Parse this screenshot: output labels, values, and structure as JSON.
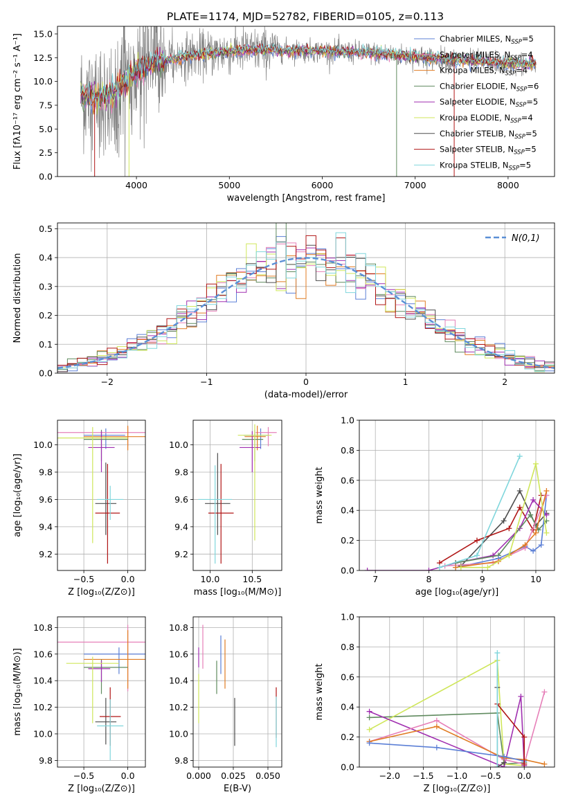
{
  "figure": {
    "title": "PLATE=1174, MJD=52782, FIBERID=0105, z=0.113",
    "models": [
      {
        "name": "Chabrier MILES",
        "nssp": "5",
        "color": "#5b7fd6"
      },
      {
        "name": "Salpeter MILES",
        "nssp": "4",
        "color": "#e67fb8"
      },
      {
        "name": "Kroupa MILES",
        "nssp": "4",
        "color": "#e07b22"
      },
      {
        "name": "Chabrier ELODIE",
        "nssp": "6",
        "color": "#5f8a5e"
      },
      {
        "name": "Salpeter ELODIE",
        "nssp": "5",
        "color": "#a02fb0"
      },
      {
        "name": "Kroupa ELODIE",
        "nssp": "4",
        "color": "#cfe65a"
      },
      {
        "name": "Chabrier STELIB",
        "nssp": "5",
        "color": "#4d4d4d"
      },
      {
        "name": "Salpeter STELIB",
        "nssp": "5",
        "color": "#b01414"
      },
      {
        "name": "Kroupa STELIB",
        "nssp": "5",
        "color": "#7fd6dc"
      }
    ],
    "legend_nssp_prefix": "N",
    "legend_nssp_sub": "SSP",
    "data_color": "#808080"
  },
  "chart_data": [
    {
      "id": "spectrum",
      "type": "line",
      "xlabel": "wavelength [Angstrom, rest frame]",
      "ylabel": "Flux [fλ10⁻¹⁷ erg cm⁻² s⁻¹ A⁻¹]",
      "xlim": [
        3150,
        8500
      ],
      "ylim": [
        0,
        15.8
      ],
      "xticks": [
        4000,
        5000,
        6000,
        7000,
        8000
      ],
      "yticks": [
        0.0,
        2.5,
        5.0,
        7.5,
        10.0,
        12.5,
        15.0
      ],
      "ytick_labels": [
        "0.0",
        "2.5",
        "5.0",
        "7.5",
        "10.0",
        "12.5",
        "15.0"
      ],
      "legend_position": "right",
      "continuum": {
        "x": [
          3400,
          3600,
          3700,
          3800,
          3900,
          4000,
          4200,
          4500,
          5000,
          5500,
          6000,
          6500,
          7000,
          7500,
          8000,
          8300
        ],
        "y": [
          8.6,
          8.2,
          8.6,
          9.2,
          10.0,
          11.0,
          12.0,
          12.6,
          13.2,
          13.3,
          13.2,
          13.0,
          12.6,
          12.2,
          11.9,
          11.8
        ]
      },
      "drops": [
        {
          "x": 3550,
          "model": 7
        },
        {
          "x": 3920,
          "model": 5
        },
        {
          "x": 6800,
          "model": 3
        },
        {
          "x": 7420,
          "model": 7
        }
      ]
    },
    {
      "id": "residuals",
      "type": "histogram",
      "xlabel": "(data-model)/error",
      "ylabel": "Normed distribution",
      "xlim": [
        -2.5,
        2.5
      ],
      "ylim": [
        0,
        0.52
      ],
      "xticks": [
        -2,
        -1,
        0,
        1,
        2
      ],
      "xtick_labels": [
        "−2",
        "−1",
        "0",
        "1",
        "2"
      ],
      "yticks": [
        0.0,
        0.1,
        0.2,
        0.3,
        0.4,
        0.5
      ],
      "ytick_labels": [
        "0.0",
        "0.1",
        "0.2",
        "0.3",
        "0.4",
        "0.5"
      ],
      "bin_width": 0.1,
      "grid": true,
      "legend_position": "top-right",
      "reference_curve": {
        "name": "N(0,1)",
        "color": "#5b8fd6"
      }
    },
    {
      "id": "age-vs-Z",
      "type": "errorbar",
      "xlabel": "Z [log₁₀(Z/Z⊙)]",
      "ylabel": "age  [log₁₀(age/yr)]",
      "xlim": [
        -0.8,
        0.2
      ],
      "ylim": [
        9.08,
        10.18
      ],
      "xticks": [
        -0.5,
        0.0
      ],
      "xtick_labels": [
        "−0.5",
        "0.0"
      ],
      "yticks": [
        9.2,
        9.4,
        9.6,
        9.8,
        10.0
      ],
      "ytick_labels": [
        "9.2",
        "9.4",
        "9.6",
        "9.8",
        "10.0"
      ],
      "grid": true,
      "points": [
        {
          "model": 0,
          "x": -0.25,
          "xerr": [
            0.25,
            0.22
          ],
          "y": 10.07,
          "yerr": [
            0.1,
            0.05
          ]
        },
        {
          "model": 1,
          "x": 0.0,
          "xerr": [
            0.8,
            0.2
          ],
          "y": 10.09,
          "yerr": [
            0.1,
            0.04
          ]
        },
        {
          "model": 2,
          "x": 0.0,
          "xerr": [
            0.5,
            0.2
          ],
          "y": 10.06,
          "yerr": [
            0.1,
            0.08
          ]
        },
        {
          "model": 3,
          "x": -0.3,
          "xerr": [
            0.2,
            0.3
          ],
          "y": 10.04,
          "yerr": [
            0.16,
            0.07
          ]
        },
        {
          "model": 4,
          "x": -0.3,
          "xerr": [
            0.15,
            0.15
          ],
          "y": 9.98,
          "yerr": [
            0.18,
            0.12
          ]
        },
        {
          "model": 5,
          "x": -0.4,
          "xerr": [
            0.4,
            0.4
          ],
          "y": 10.05,
          "yerr": [
            0.77,
            0.08
          ]
        },
        {
          "model": 6,
          "x": -0.25,
          "xerr": [
            0.12,
            0.12
          ],
          "y": 9.57,
          "yerr": [
            0.23,
            0.3
          ]
        },
        {
          "model": 7,
          "x": -0.23,
          "xerr": [
            0.14,
            0.14
          ],
          "y": 9.5,
          "yerr": [
            0.37,
            0.36
          ]
        },
        {
          "model": 8,
          "x": -0.2,
          "xerr": [
            0.15,
            0.15
          ],
          "y": 9.6,
          "yerr": [
            0.15,
            0.1
          ]
        }
      ]
    },
    {
      "id": "age-vs-mass",
      "type": "errorbar",
      "xlabel": "mass [log₁₀(M/M⊙)]",
      "ylabel": "",
      "xlim": [
        9.8,
        10.85
      ],
      "ylim": [
        9.08,
        10.18
      ],
      "xticks": [
        10.0,
        10.5
      ],
      "xtick_labels": [
        "10.0",
        "10.5"
      ],
      "yticks": [
        9.2,
        9.4,
        9.6,
        9.8,
        10.0
      ],
      "ytick_labels": [
        "9.2",
        "9.4",
        "9.6",
        "9.8",
        "10.0"
      ],
      "grid": true,
      "points": [
        {
          "model": 0,
          "x": 10.6,
          "xerr": [
            0.2,
            0.1
          ],
          "y": 10.07,
          "yerr": [
            0.1,
            0.05
          ]
        },
        {
          "model": 1,
          "x": 10.69,
          "xerr": [
            0.15,
            0.1
          ],
          "y": 10.09,
          "yerr": [
            0.1,
            0.04
          ]
        },
        {
          "model": 2,
          "x": 10.56,
          "xerr": [
            0.15,
            0.1
          ],
          "y": 10.06,
          "yerr": [
            0.1,
            0.08
          ]
        },
        {
          "model": 3,
          "x": 10.53,
          "xerr": [
            0.15,
            0.1
          ],
          "y": 10.04,
          "yerr": [
            0.16,
            0.07
          ]
        },
        {
          "model": 4,
          "x": 10.5,
          "xerr": [
            0.15,
            0.1
          ],
          "y": 9.98,
          "yerr": [
            0.18,
            0.12
          ]
        },
        {
          "model": 5,
          "x": 10.53,
          "xerr": [
            0.2,
            0.2
          ],
          "y": 10.07,
          "yerr": [
            0.77,
            0.08
          ]
        },
        {
          "model": 6,
          "x": 10.09,
          "xerr": [
            0.15,
            0.15
          ],
          "y": 9.57,
          "yerr": [
            0.23,
            0.37
          ]
        },
        {
          "model": 7,
          "x": 10.13,
          "xerr": [
            0.15,
            0.15
          ],
          "y": 9.5,
          "yerr": [
            0.37,
            0.36
          ]
        },
        {
          "model": 8,
          "x": 10.06,
          "xerr": [
            0.2,
            0.2
          ],
          "y": 9.6,
          "yerr": [
            0.47,
            0.25
          ]
        }
      ]
    },
    {
      "id": "mass-weight-vs-age",
      "type": "line",
      "xlabel": "age  [log₁₀(age/yr)]",
      "ylabel": "mass weight",
      "xlim": [
        6.7,
        10.35
      ],
      "ylim": [
        0,
        1
      ],
      "xticks": [
        7,
        8,
        9,
        10
      ],
      "xtick_labels": [
        "7",
        "8",
        "9",
        "10"
      ],
      "yticks": [
        0.0,
        0.2,
        0.4,
        0.6,
        0.8,
        1.0
      ],
      "ytick_labels": [
        "0.0",
        "0.2",
        "0.4",
        "0.6",
        "0.8",
        "1.0"
      ],
      "grid": true,
      "series": [
        {
          "model": 6,
          "x": [
            8.6,
            9.4,
            9.7,
            10.0,
            10.2
          ],
          "y": [
            0.03,
            0.33,
            0.53,
            0.3,
            0.38
          ]
        },
        {
          "model": 7,
          "x": [
            8.2,
            8.9,
            9.5,
            9.7,
            9.95,
            10.1
          ],
          "y": [
            0.05,
            0.2,
            0.28,
            0.42,
            0.27,
            0.5
          ]
        },
        {
          "model": 4,
          "x": [
            6.85,
            8.0,
            8.5,
            9.2,
            9.7,
            9.95,
            10.2
          ],
          "y": [
            0.0,
            0.0,
            0.05,
            0.1,
            0.28,
            0.47,
            0.37
          ]
        },
        {
          "model": 3,
          "x": [
            8.5,
            9.3,
            9.9,
            10.05,
            10.2
          ],
          "y": [
            0.05,
            0.1,
            0.37,
            0.27,
            0.33
          ]
        },
        {
          "model": 0,
          "x": [
            8.5,
            9.3,
            9.8,
            9.95,
            10.1,
            10.2
          ],
          "y": [
            0.02,
            0.08,
            0.16,
            0.13,
            0.17,
            0.5
          ]
        },
        {
          "model": 1,
          "x": [
            8.3,
            9.2,
            9.8,
            10.2
          ],
          "y": [
            0.03,
            0.05,
            0.15,
            0.5
          ]
        },
        {
          "model": 2,
          "x": [
            8.5,
            9.3,
            9.8,
            10.0,
            10.2
          ],
          "y": [
            0.02,
            0.06,
            0.17,
            0.25,
            0.53
          ]
        },
        {
          "model": 5,
          "x": [
            8.6,
            9.1,
            9.5,
            10.0,
            10.2
          ],
          "y": [
            0.02,
            0.02,
            0.1,
            0.71,
            0.25
          ]
        },
        {
          "model": 8,
          "x": [
            8.2,
            8.9,
            9.7
          ],
          "y": [
            0.02,
            0.1,
            0.76
          ]
        }
      ]
    },
    {
      "id": "mass-vs-Z",
      "type": "errorbar",
      "xlabel": "Z [log₁₀(Z/Z⊙)]",
      "ylabel": "mass [log₁₀(M/M⊙)]",
      "xlim": [
        -0.8,
        0.2
      ],
      "ylim": [
        9.75,
        10.88
      ],
      "xticks": [
        -0.5,
        0.0
      ],
      "xtick_labels": [
        "−0.5",
        "0.0"
      ],
      "yticks": [
        9.8,
        10.0,
        10.2,
        10.4,
        10.6,
        10.8
      ],
      "ytick_labels": [
        "9.8",
        "10.0",
        "10.2",
        "10.4",
        "10.6",
        "10.8"
      ],
      "grid": true,
      "points": [
        {
          "model": 0,
          "x": -0.1,
          "xerr": [
            0.4,
            0.3
          ],
          "y": 10.6,
          "yerr": [
            0.15,
            0.05
          ]
        },
        {
          "model": 1,
          "x": 0.0,
          "xerr": [
            0.8,
            0.2
          ],
          "y": 10.69,
          "yerr": [
            0.37,
            0.13
          ]
        },
        {
          "model": 2,
          "x": 0.0,
          "xerr": [
            0.5,
            0.2
          ],
          "y": 10.56,
          "yerr": [
            0.22,
            0.22
          ]
        },
        {
          "model": 3,
          "x": -0.3,
          "xerr": [
            0.2,
            0.3
          ],
          "y": 10.5,
          "yerr": [
            0.2,
            0.06
          ]
        },
        {
          "model": 4,
          "x": -0.3,
          "xerr": [
            0.15,
            0.1
          ],
          "y": 10.49,
          "yerr": [
            0.1,
            0.06
          ]
        },
        {
          "model": 5,
          "x": -0.4,
          "xerr": [
            0.3,
            0.3
          ],
          "y": 10.53,
          "yerr": [
            0.45,
            0.05
          ]
        },
        {
          "model": 6,
          "x": -0.25,
          "xerr": [
            0.12,
            0.12
          ],
          "y": 10.09,
          "yerr": [
            0.17,
            0.18
          ]
        },
        {
          "model": 7,
          "x": -0.2,
          "xerr": [
            0.12,
            0.12
          ],
          "y": 10.13,
          "yerr": [
            0.22,
            0.22
          ]
        },
        {
          "model": 8,
          "x": -0.2,
          "xerr": [
            0.15,
            0.15
          ],
          "y": 10.06,
          "yerr": [
            0.26,
            0.2
          ]
        }
      ]
    },
    {
      "id": "mass-vs-EBV",
      "type": "errorbar",
      "xlabel": "E(B-V)",
      "ylabel": "",
      "xlim": [
        -0.004,
        0.06
      ],
      "ylim": [
        9.75,
        10.88
      ],
      "xticks": [
        0.0,
        0.025,
        0.05
      ],
      "xtick_labels": [
        "0.000",
        "0.025",
        "0.050"
      ],
      "yticks": [
        9.8,
        10.0,
        10.2,
        10.4,
        10.6,
        10.8
      ],
      "ytick_labels": [
        "9.8",
        "10.0",
        "10.2",
        "10.4",
        "10.6",
        "10.8"
      ],
      "grid": true,
      "points": [
        {
          "model": 0,
          "x": 0.016,
          "xerr": [
            0,
            0
          ],
          "y": 10.6,
          "yerr": [
            0.15,
            0.14
          ]
        },
        {
          "model": 1,
          "x": 0.003,
          "xerr": [
            0,
            0
          ],
          "y": 10.6,
          "yerr": [
            0.11,
            0.22
          ]
        },
        {
          "model": 2,
          "x": 0.019,
          "xerr": [
            0,
            0
          ],
          "y": 10.56,
          "yerr": [
            0.22,
            0.15
          ]
        },
        {
          "model": 3,
          "x": 0.013,
          "xerr": [
            0,
            0
          ],
          "y": 10.43,
          "yerr": [
            0.13,
            0.12
          ]
        },
        {
          "model": 4,
          "x": 0.0,
          "xerr": [
            0,
            0
          ],
          "y": 10.6,
          "yerr": [
            0.1,
            0.05
          ]
        },
        {
          "model": 5,
          "x": 0.0,
          "xerr": [
            0,
            0
          ],
          "y": 10.3,
          "yerr": [
            0.22,
            0.15
          ]
        },
        {
          "model": 6,
          "x": 0.026,
          "xerr": [
            0,
            0
          ],
          "y": 10.08,
          "yerr": [
            0.17,
            0.19
          ]
        },
        {
          "model": 7,
          "x": 0.056,
          "xerr": [
            0,
            0
          ],
          "y": 10.2,
          "yerr": [
            0.23,
            0.15
          ]
        },
        {
          "model": 8,
          "x": 0.056,
          "xerr": [
            0,
            0
          ],
          "y": 10.1,
          "yerr": [
            0.2,
            0.18
          ]
        }
      ]
    },
    {
      "id": "mass-weight-vs-Z",
      "type": "line",
      "xlabel": "Z [log₁₀(Z/Z⊙)]",
      "ylabel": "mass weight",
      "xlim": [
        -2.45,
        0.45
      ],
      "ylim": [
        0,
        1
      ],
      "xticks": [
        -2.0,
        -1.5,
        -1.0,
        -0.5,
        0.0
      ],
      "xtick_labels": [
        "−2.0",
        "−1.5",
        "−1.0",
        "−0.5",
        "0.0"
      ],
      "yticks": [
        0.0,
        0.2,
        0.4,
        0.6,
        0.8,
        1.0
      ],
      "ytick_labels": [
        "0.0",
        "0.2",
        "0.4",
        "0.6",
        "0.8",
        "1.0"
      ],
      "grid": true,
      "series": [
        {
          "model": 3,
          "x": [
            -2.3,
            -0.4,
            -0.3,
            0.0
          ],
          "y": [
            0.33,
            0.36,
            0.02,
            0.03
          ]
        },
        {
          "model": 5,
          "x": [
            -2.3,
            -0.4,
            -0.3,
            0.0
          ],
          "y": [
            0.25,
            0.71,
            0.02,
            0.01
          ]
        },
        {
          "model": 4,
          "x": [
            -2.3,
            -0.3,
            -0.05,
            0.0
          ],
          "y": [
            0.37,
            0.0,
            0.47,
            0.01
          ]
        },
        {
          "model": 1,
          "x": [
            -2.3,
            -1.3,
            -0.3,
            0.0,
            0.3
          ],
          "y": [
            0.17,
            0.31,
            0.05,
            0.02,
            0.5
          ]
        },
        {
          "model": 2,
          "x": [
            -2.3,
            -1.3,
            -0.3,
            0.0,
            0.3
          ],
          "y": [
            0.17,
            0.27,
            0.06,
            0.05,
            0.02
          ]
        },
        {
          "model": 0,
          "x": [
            -2.3,
            -1.3,
            -0.3,
            0.0
          ],
          "y": [
            0.16,
            0.13,
            0.07,
            0.04
          ]
        },
        {
          "model": 6,
          "x": [
            -0.4,
            -0.4,
            -0.3
          ],
          "y": [
            0.53,
            0.0,
            0.03
          ]
        },
        {
          "model": 7,
          "x": [
            -0.4,
            0.0,
            0.0
          ],
          "y": [
            0.42,
            0.2,
            0.02
          ]
        },
        {
          "model": 8,
          "x": [
            -0.4,
            -0.4
          ],
          "y": [
            0.76,
            0.0
          ]
        }
      ]
    }
  ]
}
